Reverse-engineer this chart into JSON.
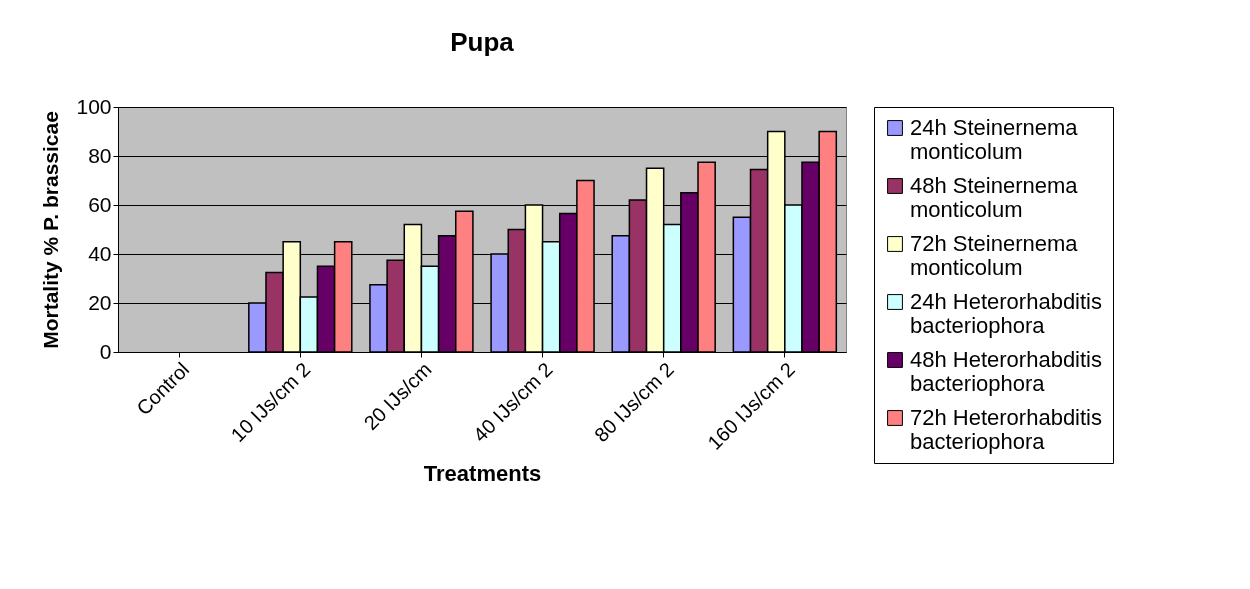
{
  "chart_data": {
    "type": "bar",
    "title": "Pupa",
    "xlabel": "Treatments",
    "ylabel": "Mortality % P. brassicae",
    "categories": [
      "Control",
      "10 IJs/cm 2",
      "20 IJs/cm",
      "40 IJs/cm 2",
      "80 IJs/cm 2",
      "160 IJs/cm 2"
    ],
    "series": [
      {
        "name": "24h Steinernema monticolum",
        "color": "#9999ff",
        "values": [
          null,
          20,
          27.5,
          40,
          47.5,
          55
        ]
      },
      {
        "name": "48h Steinernema monticolum",
        "color": "#993366",
        "values": [
          null,
          32.5,
          37.5,
          50,
          62,
          74.5
        ]
      },
      {
        "name": "72h Steinernema monticolum",
        "color": "#ffffcc",
        "values": [
          null,
          45,
          52,
          60,
          75,
          90
        ]
      },
      {
        "name": "24h Heterorhabditis bacteriophora",
        "color": "#ccffff",
        "values": [
          null,
          22.5,
          35,
          45,
          52,
          60
        ]
      },
      {
        "name": "48h Heterorhabditis bacteriophora",
        "color": "#660066",
        "values": [
          null,
          35,
          47.5,
          56.5,
          65,
          77.5
        ]
      },
      {
        "name": "72h Heterorhabditis bacteriophora",
        "color": "#ff8080",
        "values": [
          null,
          45,
          57.5,
          70,
          77.5,
          90
        ]
      }
    ],
    "ylim": [
      0,
      100
    ],
    "yticks": [
      0,
      20,
      40,
      60,
      80,
      100
    ],
    "grid": "y",
    "legend": "right"
  }
}
